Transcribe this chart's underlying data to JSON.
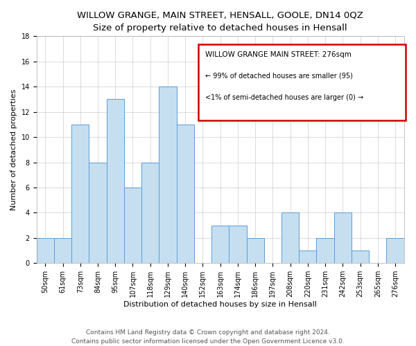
{
  "title": "WILLOW GRANGE, MAIN STREET, HENSALL, GOOLE, DN14 0QZ",
  "subtitle": "Size of property relative to detached houses in Hensall",
  "xlabel": "Distribution of detached houses by size in Hensall",
  "ylabel": "Number of detached properties",
  "bar_labels": [
    "50sqm",
    "61sqm",
    "73sqm",
    "84sqm",
    "95sqm",
    "107sqm",
    "118sqm",
    "129sqm",
    "140sqm",
    "152sqm",
    "163sqm",
    "174sqm",
    "186sqm",
    "197sqm",
    "208sqm",
    "220sqm",
    "231sqm",
    "242sqm",
    "253sqm",
    "265sqm",
    "276sqm"
  ],
  "bar_values": [
    2,
    2,
    11,
    8,
    13,
    6,
    8,
    14,
    11,
    0,
    3,
    3,
    2,
    0,
    4,
    1,
    2,
    4,
    1,
    0,
    2
  ],
  "bar_color": "#c5dff0",
  "bar_edgecolor": "#5b9bd5",
  "ylim": [
    0,
    18
  ],
  "yticks": [
    0,
    2,
    4,
    6,
    8,
    10,
    12,
    14,
    16,
    18
  ],
  "legend_title": "WILLOW GRANGE MAIN STREET: 276sqm",
  "legend_line1": "← 99% of detached houses are smaller (95)",
  "legend_line2": "<1% of semi-detached houses are larger (0) →",
  "legend_box_color": "#ffffff",
  "legend_box_edgecolor": "#cc0000",
  "footer1": "Contains HM Land Registry data © Crown copyright and database right 2024.",
  "footer2": "Contains public sector information licensed under the Open Government Licence v3.0.",
  "title_fontsize": 9.5,
  "subtitle_fontsize": 8.5,
  "axis_label_fontsize": 8,
  "tick_fontsize": 7,
  "legend_title_fontsize": 7.5,
  "legend_text_fontsize": 7,
  "footer_fontsize": 6.5
}
